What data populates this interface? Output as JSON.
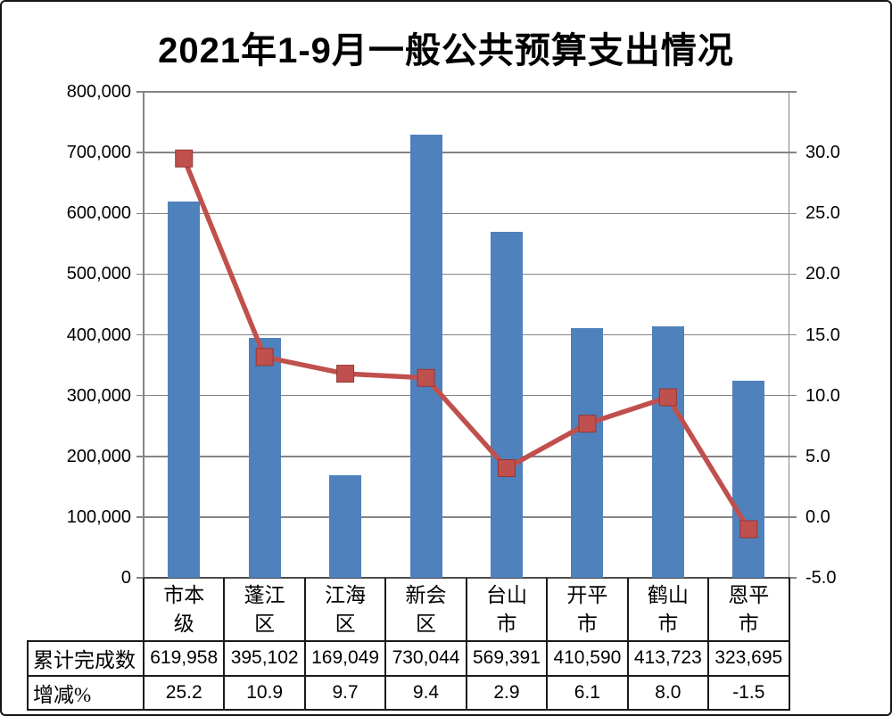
{
  "title": "2021年1-9月一般公共预算支出情况",
  "chart_data": {
    "type": "bar",
    "subtype": "bar+line combo",
    "categories": [
      "市本级",
      "蓬江区",
      "江海区",
      "新会区",
      "台山市",
      "开平市",
      "鹤山市",
      "恩平市"
    ],
    "category_label_lines": [
      [
        "市本",
        "级"
      ],
      [
        "蓬江",
        "区"
      ],
      [
        "江海",
        "区"
      ],
      [
        "新会",
        "区"
      ],
      [
        "台山",
        "市"
      ],
      [
        "开平",
        "市"
      ],
      [
        "鹤山",
        "市"
      ],
      [
        "恩平",
        "市"
      ]
    ],
    "series": [
      {
        "name": "累计完成数",
        "type": "bar",
        "axis": "left",
        "color": "#4F81BD",
        "values": [
          619958,
          395102,
          169049,
          730044,
          569391,
          410590,
          413723,
          323695
        ]
      },
      {
        "name": "增减%",
        "type": "line",
        "axis": "right",
        "color": "#C0504D",
        "values": [
          25.2,
          10.9,
          9.7,
          9.4,
          2.9,
          6.1,
          8.0,
          -1.5
        ]
      }
    ],
    "title": "2021年1-9月一般公共预算支出情况",
    "xlabel": "",
    "ylabel": "",
    "left_axis": {
      "min": 0,
      "max": 800000,
      "step": 100000,
      "tick_labels": [
        "0",
        "100,000",
        "200,000",
        "300,000",
        "400,000",
        "500,000",
        "600,000",
        "700,000",
        "800,000"
      ]
    },
    "right_axis": {
      "min": -5.0,
      "max": 30.0,
      "step": 5.0,
      "tick_labels": [
        "-5.0",
        "0.0",
        "5.0",
        "10.0",
        "15.0",
        "20.0",
        "25.0",
        "30.0"
      ]
    },
    "grid": true,
    "legend_position": "none"
  },
  "data_table": {
    "rows": [
      {
        "header": "累计完成数",
        "values": [
          "619,958",
          "395,102",
          "169,049",
          "730,044",
          "569,391",
          "410,590",
          "413,723",
          "323,695"
        ]
      },
      {
        "header": "增减%",
        "values": [
          "25.2",
          "10.9",
          "9.7",
          "9.4",
          "2.9",
          "6.1",
          "8.0",
          "-1.5"
        ]
      }
    ]
  },
  "colors": {
    "bar": "#4F81BD",
    "line": "#C0504D",
    "marker_border": "#943634",
    "gridline": "#848484",
    "axis": "#848484",
    "table_border": "#1a1a1a",
    "background": "#FFFFFF",
    "text": "#000000"
  }
}
